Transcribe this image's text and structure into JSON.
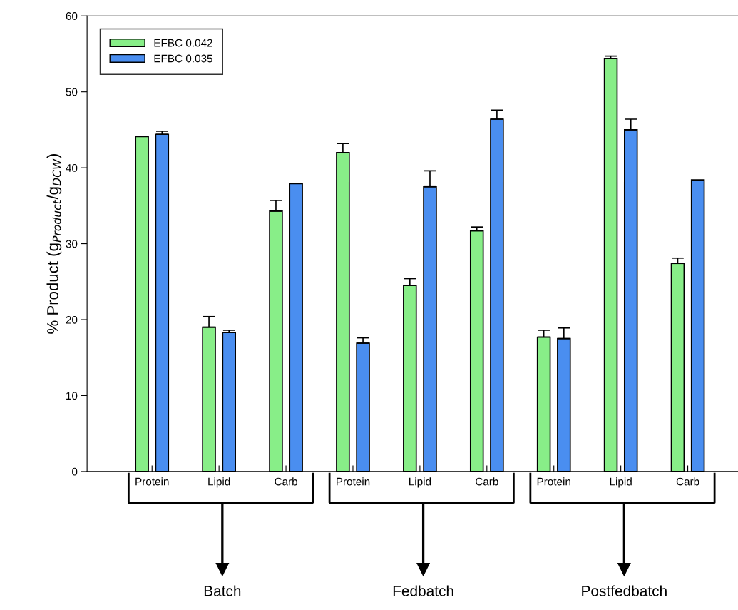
{
  "chart_data": {
    "type": "bar",
    "ylabel": "% Product (g$_{Product}$/g$_{DCW}$)",
    "categories": [
      "Protein",
      "Lipid",
      "Carb",
      "Protein",
      "Lipid",
      "Carb",
      "Protein",
      "Lipid",
      "Carb"
    ],
    "series": [
      {
        "name": "EFBC 0.042",
        "color": "#88ee88",
        "values": [
          44.1,
          19.0,
          34.3,
          42.0,
          24.5,
          31.7,
          17.7,
          54.4,
          27.4
        ],
        "errors": [
          null,
          [
            19.0,
            20.4
          ],
          [
            34.3,
            35.7
          ],
          [
            42.0,
            43.2
          ],
          [
            24.5,
            25.4
          ],
          [
            31.7,
            32.2
          ],
          [
            17.7,
            18.6
          ],
          [
            54.4,
            54.7
          ],
          [
            27.4,
            28.1
          ]
        ]
      },
      {
        "name": "EFBC 0.035",
        "color": "#4a8ef0",
        "values": [
          44.4,
          18.3,
          37.9,
          16.9,
          37.5,
          46.4,
          17.5,
          45.0,
          38.4
        ],
        "errors": [
          [
            44.4,
            44.8
          ],
          [
            18.3,
            18.6
          ],
          null,
          [
            16.9,
            17.6
          ],
          [
            37.5,
            39.6
          ],
          [
            46.4,
            47.6
          ],
          [
            17.5,
            18.9
          ],
          [
            45.0,
            46.4
          ],
          null
        ]
      }
    ],
    "ylim": [
      0,
      60
    ],
    "yticks": [
      0,
      10,
      20,
      30,
      40,
      50,
      60
    ],
    "legend": "top left",
    "grid": false,
    "annotations": [
      "Batch",
      "Fedbatch",
      "Postfedbatch"
    ]
  }
}
